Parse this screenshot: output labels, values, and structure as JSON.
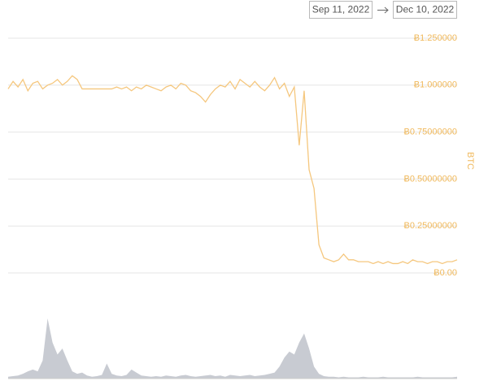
{
  "chart_data": {
    "type": "line",
    "date_range": {
      "start": "Sep 11, 2022",
      "end": "Dec 10, 2022"
    },
    "y_label": "BTC",
    "ylim": [
      0,
      1.25
    ],
    "yticks": [
      {
        "value": 0,
        "label": "Ƀ0.00"
      },
      {
        "value": 0.25,
        "label": "Ƀ0.25000000"
      },
      {
        "value": 0.5,
        "label": "Ƀ0.50000000"
      },
      {
        "value": 0.75,
        "label": "Ƀ0.75000000"
      },
      {
        "value": 1.0,
        "label": "Ƀ1.000000"
      },
      {
        "value": 1.25,
        "label": "Ƀ1.250000"
      }
    ],
    "grid": true,
    "y2lim": [
      0,
      100
    ],
    "series": [
      {
        "color": "#f5c77e",
        "values": [
          0.98,
          1.02,
          0.99,
          1.03,
          0.97,
          1.01,
          1.02,
          0.98,
          1.0,
          1.01,
          1.03,
          1.0,
          1.02,
          1.05,
          1.03,
          0.98,
          0.98,
          0.98,
          0.98,
          0.98,
          0.98,
          0.98,
          0.99,
          0.98,
          0.99,
          0.97,
          0.99,
          0.98,
          1.0,
          0.99,
          0.98,
          0.97,
          0.99,
          1.0,
          0.98,
          1.01,
          1.0,
          0.97,
          0.96,
          0.94,
          0.91,
          0.95,
          0.98,
          1.0,
          0.99,
          1.02,
          0.98,
          1.03,
          1.01,
          0.99,
          1.02,
          0.99,
          0.97,
          1.0,
          1.04,
          0.98,
          1.01,
          0.94,
          0.99,
          0.68,
          0.97,
          0.55,
          0.45,
          0.15,
          0.08,
          0.07,
          0.06,
          0.07,
          0.1,
          0.07,
          0.07,
          0.06,
          0.06,
          0.06,
          0.05,
          0.06,
          0.05,
          0.06,
          0.05,
          0.05,
          0.06,
          0.05,
          0.07,
          0.06,
          0.06,
          0.05,
          0.06,
          0.06,
          0.05,
          0.06,
          0.06,
          0.07
        ]
      },
      {
        "color": "#c8cbd2",
        "axis": "y2",
        "values": [
          3,
          4,
          5,
          8,
          12,
          15,
          12,
          30,
          100,
          60,
          40,
          50,
          30,
          12,
          8,
          10,
          5,
          3,
          4,
          6,
          25,
          8,
          5,
          4,
          6,
          15,
          10,
          5,
          4,
          3,
          4,
          3,
          5,
          4,
          3,
          5,
          6,
          4,
          3,
          4,
          5,
          6,
          4,
          5,
          3,
          6,
          5,
          4,
          5,
          6,
          4,
          5,
          6,
          8,
          10,
          20,
          35,
          45,
          40,
          60,
          75,
          50,
          20,
          8,
          4,
          3,
          3,
          2,
          3,
          2,
          2,
          2,
          3,
          2,
          2,
          2,
          3,
          2,
          2,
          2,
          2,
          2,
          2,
          3,
          2,
          2,
          2,
          2,
          2,
          2,
          2,
          3
        ]
      }
    ]
  }
}
